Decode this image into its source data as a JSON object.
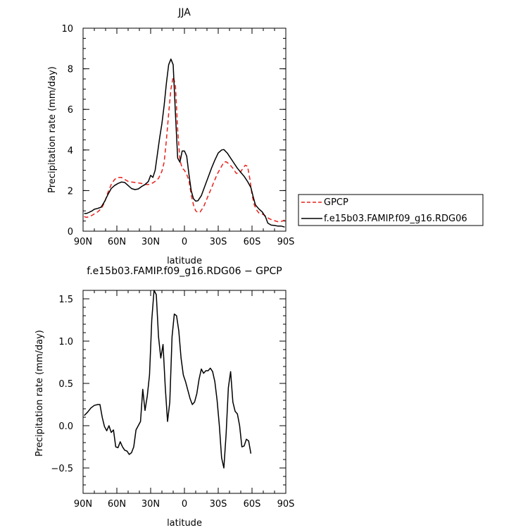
{
  "chart_data": [
    {
      "type": "line",
      "title": "JJA",
      "xlabel": "latitude",
      "ylabel": "Precipitation rate (mm/day)",
      "xlim": [
        90,
        -90
      ],
      "ylim": [
        0,
        10
      ],
      "x_ticks": [
        90,
        60,
        30,
        0,
        -30,
        -60,
        -90
      ],
      "x_tick_labels": [
        "90N",
        "60N",
        "30N",
        "0",
        "30S",
        "60S",
        "90S"
      ],
      "y_ticks": [
        0,
        2,
        4,
        6,
        8,
        10
      ],
      "y_tick_labels": [
        "0",
        "2",
        "4",
        "6",
        "8",
        "10"
      ],
      "grid": false,
      "legend_position": "right",
      "series": [
        {
          "name": "GPCP",
          "color": "#e8211b",
          "dash": "dashed",
          "points": [
            [
              89,
              0.72
            ],
            [
              87,
              0.68
            ],
            [
              85,
              0.7
            ],
            [
              82,
              0.78
            ],
            [
              80,
              0.85
            ],
            [
              77,
              0.95
            ],
            [
              74,
              1.1
            ],
            [
              71,
              1.4
            ],
            [
              68,
              1.9
            ],
            [
              65,
              2.3
            ],
            [
              62,
              2.55
            ],
            [
              59,
              2.65
            ],
            [
              56,
              2.65
            ],
            [
              53,
              2.55
            ],
            [
              50,
              2.45
            ],
            [
              47,
              2.42
            ],
            [
              44,
              2.4
            ],
            [
              41,
              2.38
            ],
            [
              38,
              2.35
            ],
            [
              35,
              2.3
            ],
            [
              32,
              2.3
            ],
            [
              29,
              2.35
            ],
            [
              26,
              2.45
            ],
            [
              23,
              2.6
            ],
            [
              20,
              2.95
            ],
            [
              18,
              3.4
            ],
            [
              16,
              4.5
            ],
            [
              14,
              5.8
            ],
            [
              12,
              7.0
            ],
            [
              10,
              7.6
            ],
            [
              8,
              7.2
            ],
            [
              6,
              5.0
            ],
            [
              4,
              3.5
            ],
            [
              2,
              3.1
            ],
            [
              0,
              3.0
            ],
            [
              -2,
              2.8
            ],
            [
              -4,
              2.5
            ],
            [
              -6,
              1.8
            ],
            [
              -8,
              1.3
            ],
            [
              -10,
              1.0
            ],
            [
              -12,
              0.92
            ],
            [
              -14,
              0.95
            ],
            [
              -17,
              1.2
            ],
            [
              -20,
              1.6
            ],
            [
              -23,
              2.0
            ],
            [
              -26,
              2.4
            ],
            [
              -29,
              2.8
            ],
            [
              -32,
              3.1
            ],
            [
              -35,
              3.4
            ],
            [
              -37,
              3.42
            ],
            [
              -40,
              3.3
            ],
            [
              -43,
              3.1
            ],
            [
              -46,
              2.85
            ],
            [
              -49,
              2.85
            ],
            [
              -52,
              3.1
            ],
            [
              -54,
              3.25
            ],
            [
              -56,
              3.2
            ],
            [
              -58,
              2.6
            ],
            [
              -60,
              1.8
            ],
            [
              -62,
              1.3
            ],
            [
              -64,
              1.05
            ],
            [
              -66,
              0.9
            ],
            [
              -69,
              0.85
            ],
            [
              -72,
              0.75
            ],
            [
              -75,
              0.62
            ],
            [
              -78,
              0.55
            ],
            [
              -81,
              0.5
            ],
            [
              -84,
              0.45
            ],
            [
              -87,
              0.5
            ],
            [
              -89,
              0.55
            ]
          ]
        },
        {
          "name": "f.e15b03.FAMIP.f09_g16.RDG06",
          "color": "#000000",
          "dash": "solid",
          "points": [
            [
              89,
              0.87
            ],
            [
              87,
              0.87
            ],
            [
              85,
              0.92
            ],
            [
              82,
              1.0
            ],
            [
              80,
              1.08
            ],
            [
              77,
              1.12
            ],
            [
              74,
              1.18
            ],
            [
              71,
              1.45
            ],
            [
              68,
              1.8
            ],
            [
              65,
              2.1
            ],
            [
              62,
              2.25
            ],
            [
              59,
              2.35
            ],
            [
              56,
              2.42
            ],
            [
              53,
              2.4
            ],
            [
              50,
              2.25
            ],
            [
              47,
              2.1
            ],
            [
              44,
              2.05
            ],
            [
              41,
              2.08
            ],
            [
              38,
              2.2
            ],
            [
              35,
              2.3
            ],
            [
              32,
              2.45
            ],
            [
              30,
              2.75
            ],
            [
              28,
              2.65
            ],
            [
              26,
              3.0
            ],
            [
              24,
              3.8
            ],
            [
              22,
              4.6
            ],
            [
              20,
              5.3
            ],
            [
              18,
              6.2
            ],
            [
              16,
              7.3
            ],
            [
              14,
              8.2
            ],
            [
              12,
              8.48
            ],
            [
              10,
              8.2
            ],
            [
              8,
              5.8
            ],
            [
              6,
              3.6
            ],
            [
              4,
              3.4
            ],
            [
              2,
              3.95
            ],
            [
              0,
              3.95
            ],
            [
              -2,
              3.7
            ],
            [
              -4,
              2.8
            ],
            [
              -6,
              2.0
            ],
            [
              -8,
              1.6
            ],
            [
              -10,
              1.48
            ],
            [
              -12,
              1.5
            ],
            [
              -15,
              1.75
            ],
            [
              -18,
              2.2
            ],
            [
              -21,
              2.65
            ],
            [
              -24,
              3.1
            ],
            [
              -27,
              3.5
            ],
            [
              -30,
              3.85
            ],
            [
              -33,
              4.0
            ],
            [
              -35,
              4.02
            ],
            [
              -38,
              3.85
            ],
            [
              -41,
              3.6
            ],
            [
              -44,
              3.35
            ],
            [
              -47,
              3.1
            ],
            [
              -50,
              2.9
            ],
            [
              -53,
              2.7
            ],
            [
              -56,
              2.45
            ],
            [
              -59,
              2.15
            ],
            [
              -61,
              1.7
            ],
            [
              -63,
              1.3
            ],
            [
              -66,
              1.1
            ],
            [
              -69,
              0.95
            ],
            [
              -72,
              0.7
            ],
            [
              -74,
              0.4
            ],
            [
              -77,
              0.3
            ],
            [
              -80,
              0.28
            ],
            [
              -83,
              0.25
            ],
            [
              -86,
              0.25
            ],
            [
              -89,
              0.2
            ]
          ]
        }
      ]
    },
    {
      "type": "line",
      "title": "f.e15b03.FAMIP.f09_g16.RDG06 − GPCP",
      "xlabel": "latitude",
      "ylabel": "Precipitation rate (mm/day)",
      "xlim": [
        90,
        -90
      ],
      "ylim": [
        -0.8,
        1.6
      ],
      "x_ticks": [
        90,
        60,
        30,
        0,
        -30,
        -60,
        -90
      ],
      "x_tick_labels": [
        "90N",
        "60N",
        "30N",
        "0",
        "30S",
        "60S",
        "90S"
      ],
      "y_ticks": [
        -0.5,
        0.0,
        0.5,
        1.0,
        1.5
      ],
      "y_tick_labels": [
        "−0.5",
        "0.0",
        "0.5",
        "1.0",
        "1.5"
      ],
      "grid": false,
      "series": [
        {
          "color": "#000000",
          "dash": "solid",
          "points": [
            [
              89,
              0.12
            ],
            [
              86,
              0.16
            ],
            [
              83,
              0.21
            ],
            [
              80,
              0.24
            ],
            [
              77,
              0.25
            ],
            [
              75,
              0.25
            ],
            [
              73,
              0.1
            ],
            [
              71,
              -0.01
            ],
            [
              69,
              -0.06
            ],
            [
              67,
              0.0
            ],
            [
              65,
              -0.08
            ],
            [
              63,
              -0.05
            ],
            [
              61,
              -0.25
            ],
            [
              59,
              -0.26
            ],
            [
              57,
              -0.19
            ],
            [
              55,
              -0.25
            ],
            [
              53,
              -0.29
            ],
            [
              51,
              -0.3
            ],
            [
              49,
              -0.34
            ],
            [
              47,
              -0.32
            ],
            [
              45,
              -0.25
            ],
            [
              43,
              -0.05
            ],
            [
              41,
              0.0
            ],
            [
              39,
              0.05
            ],
            [
              37,
              0.43
            ],
            [
              35,
              0.18
            ],
            [
              33,
              0.35
            ],
            [
              31,
              0.6
            ],
            [
              29,
              1.25
            ],
            [
              27,
              1.6
            ],
            [
              25,
              1.55
            ],
            [
              23,
              1.05
            ],
            [
              21,
              0.8
            ],
            [
              19,
              0.96
            ],
            [
              17,
              0.45
            ],
            [
              15,
              0.05
            ],
            [
              13,
              0.28
            ],
            [
              11,
              1.05
            ],
            [
              9,
              1.32
            ],
            [
              7,
              1.3
            ],
            [
              5,
              1.12
            ],
            [
              3,
              0.8
            ],
            [
              1,
              0.6
            ],
            [
              -1,
              0.52
            ],
            [
              -3,
              0.42
            ],
            [
              -5,
              0.32
            ],
            [
              -7,
              0.25
            ],
            [
              -9,
              0.28
            ],
            [
              -11,
              0.38
            ],
            [
              -13,
              0.55
            ],
            [
              -15,
              0.67
            ],
            [
              -17,
              0.62
            ],
            [
              -19,
              0.65
            ],
            [
              -21,
              0.65
            ],
            [
              -23,
              0.68
            ],
            [
              -25,
              0.64
            ],
            [
              -27,
              0.52
            ],
            [
              -29,
              0.3
            ],
            [
              -31,
              0.0
            ],
            [
              -33,
              -0.38
            ],
            [
              -35,
              -0.5
            ],
            [
              -37,
              -0.1
            ],
            [
              -39,
              0.45
            ],
            [
              -41,
              0.64
            ],
            [
              -43,
              0.28
            ],
            [
              -45,
              0.17
            ],
            [
              -47,
              0.14
            ],
            [
              -49,
              0.0
            ],
            [
              -51,
              -0.25
            ],
            [
              -53,
              -0.24
            ],
            [
              -55,
              -0.16
            ],
            [
              -57,
              -0.18
            ],
            [
              -59,
              -0.33
            ]
          ]
        }
      ]
    }
  ]
}
